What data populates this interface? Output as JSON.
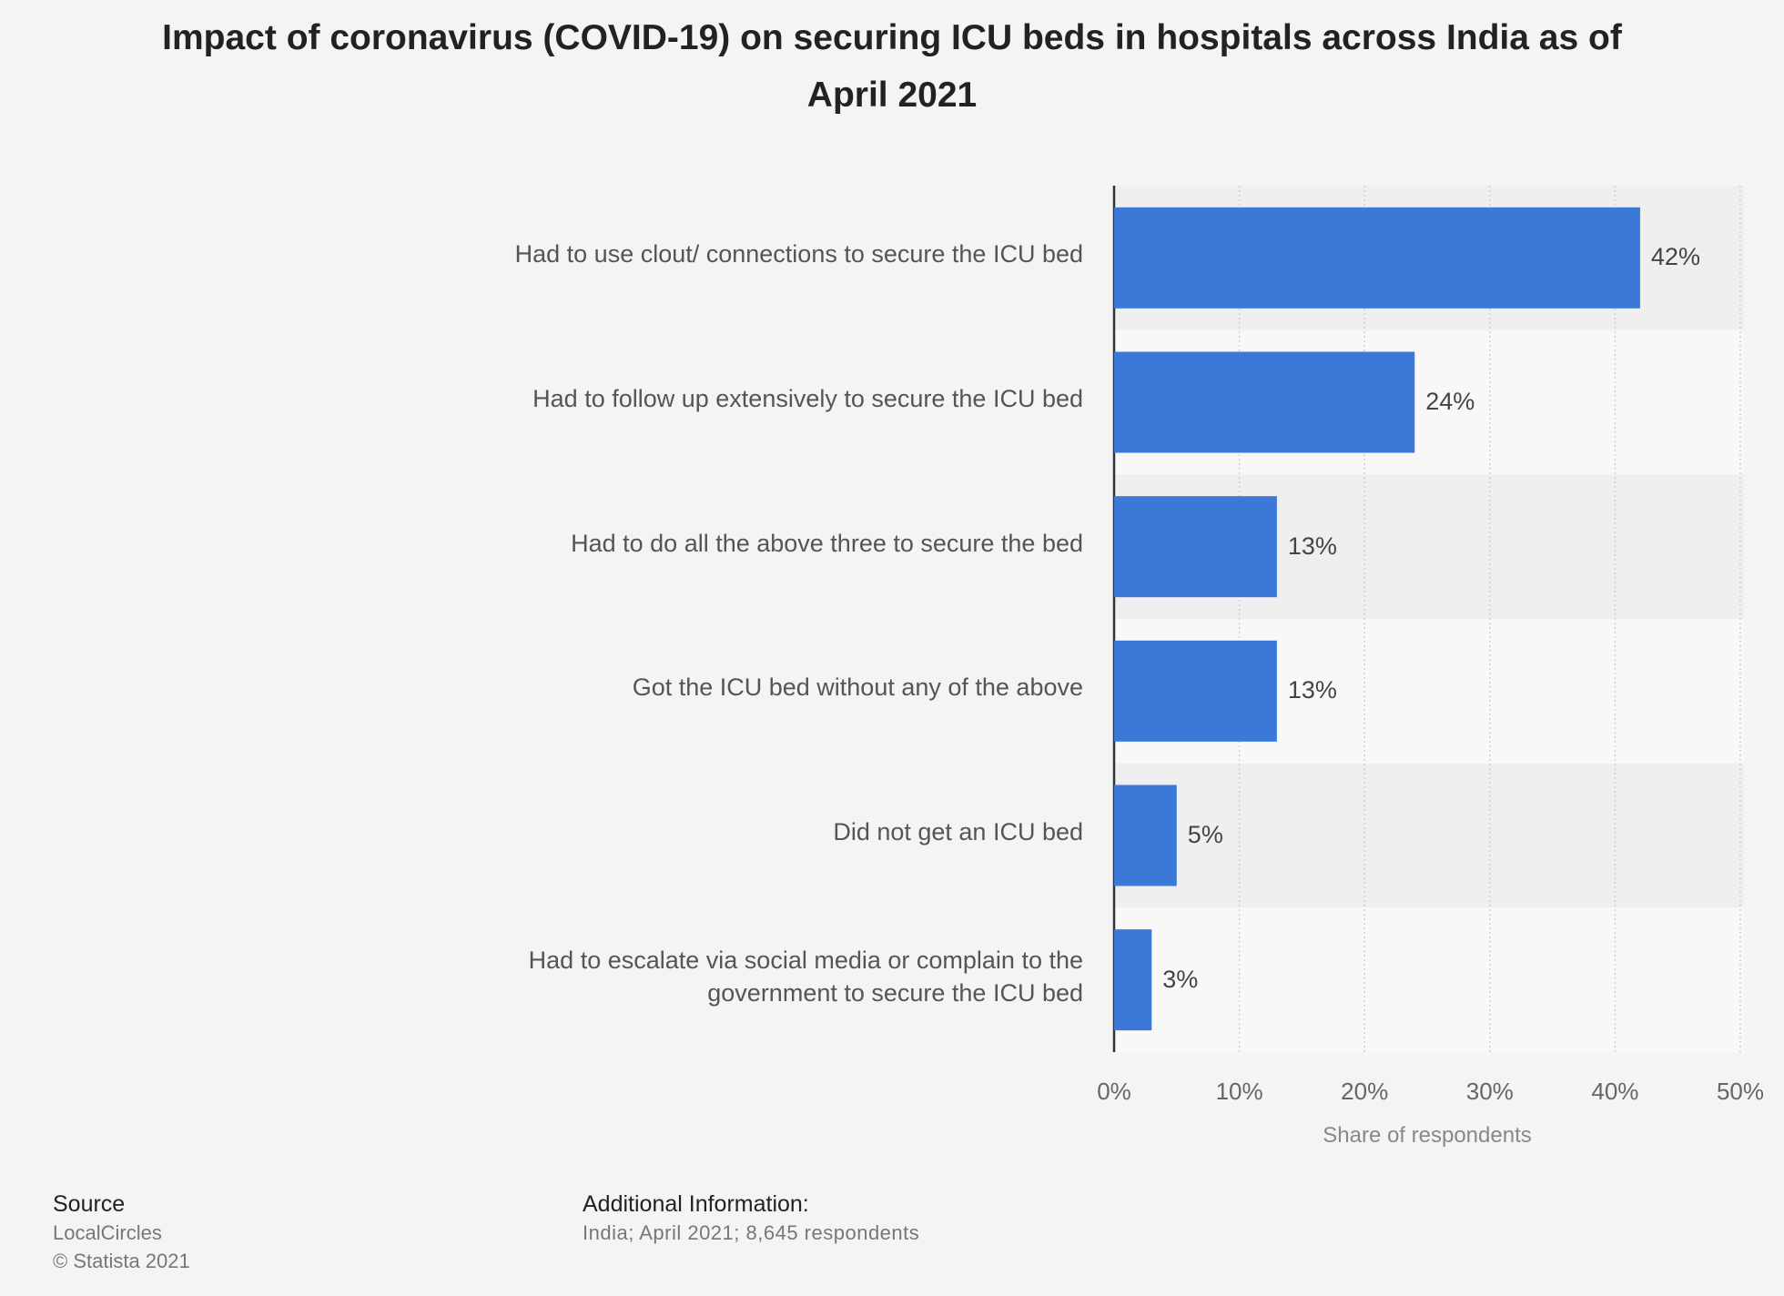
{
  "chart_data": {
    "type": "bar",
    "orientation": "horizontal",
    "title": "Impact of coronavirus (COVID-19) on securing ICU beds in hospitals across India as of April 2021",
    "categories": [
      "Had to use clout/ connections to secure the ICU bed",
      "Had to follow up extensively to secure the ICU bed",
      "Had to do all the above three to secure the bed",
      "Got the ICU bed without any of the above",
      "Did not get an ICU bed",
      "Had to escalate via social media or complain to the government to secure the ICU bed"
    ],
    "values": [
      42,
      24,
      13,
      13,
      5,
      3
    ],
    "value_labels": [
      "42%",
      "24%",
      "13%",
      "13%",
      "5%",
      "3%"
    ],
    "color": "#3c78d8",
    "xlim": [
      0,
      50
    ],
    "xticks": [
      {
        "value": 0,
        "label": "0%"
      },
      {
        "value": 10,
        "label": "10%"
      },
      {
        "value": 20,
        "label": "20%"
      },
      {
        "value": 30,
        "label": "30%"
      },
      {
        "value": 40,
        "label": "40%"
      },
      {
        "value": 50,
        "label": "50%"
      }
    ],
    "xlabel": "Share of respondents",
    "grid": true
  },
  "source": {
    "label": "Source",
    "lines": [
      "LocalCircles",
      "© Statista 2021"
    ]
  },
  "additional_info": {
    "label": "Additional Information:",
    "text": "India; April 2021; 8,645 respondents"
  }
}
